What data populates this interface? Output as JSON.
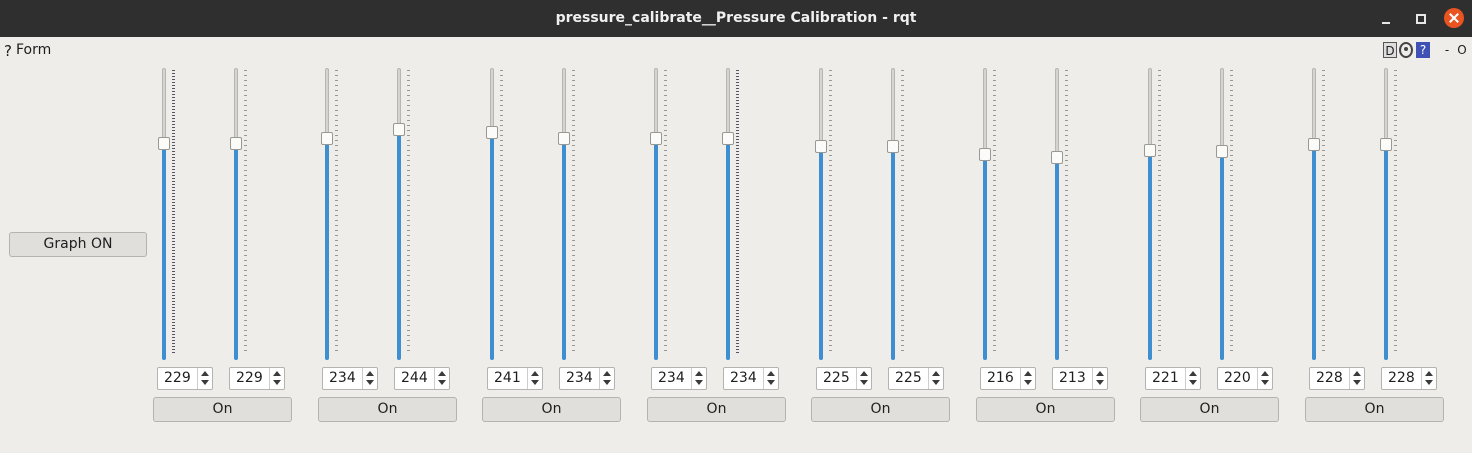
{
  "window": {
    "title": "pressure_calibrate__Pressure Calibration - rqt"
  },
  "plugin": {
    "help_mark": "?",
    "title": "Form"
  },
  "dock_icons": {
    "d_label": "D",
    "help_label": "?",
    "min_label": "-",
    "close_label": "O"
  },
  "graph_button": {
    "label": "Graph ON"
  },
  "slider_max": 300,
  "sliders": [
    {
      "value": 229
    },
    {
      "value": 229
    },
    {
      "value": 234
    },
    {
      "value": 244
    },
    {
      "value": 241
    },
    {
      "value": 234
    },
    {
      "value": 234
    },
    {
      "value": 234
    },
    {
      "value": 225
    },
    {
      "value": 225
    },
    {
      "value": 216
    },
    {
      "value": 213
    },
    {
      "value": 221
    },
    {
      "value": 220
    },
    {
      "value": 228
    },
    {
      "value": 228
    }
  ],
  "on_buttons": [
    {
      "label": "On"
    },
    {
      "label": "On"
    },
    {
      "label": "On"
    },
    {
      "label": "On"
    },
    {
      "label": "On"
    },
    {
      "label": "On"
    },
    {
      "label": "On"
    },
    {
      "label": "On"
    }
  ],
  "colors": {
    "accent": "#3d8fd1",
    "titlebar": "#2f2f2f",
    "close": "#e95420",
    "background": "#efedea"
  }
}
